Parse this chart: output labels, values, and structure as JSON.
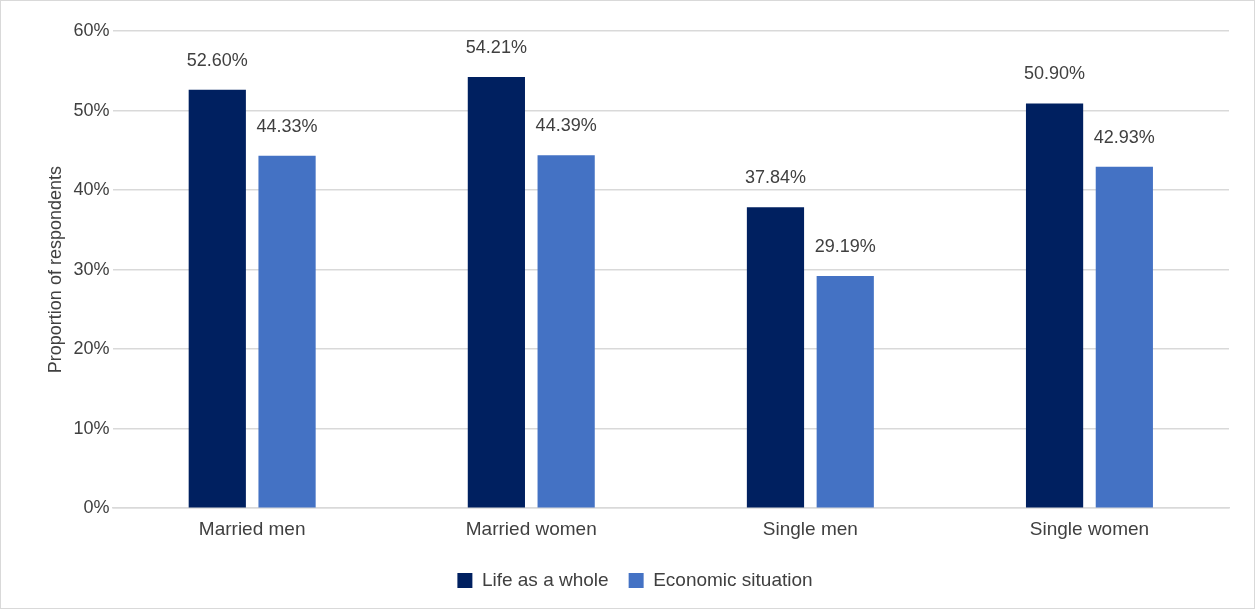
{
  "chart_data": {
    "type": "bar",
    "ylabel": "Proportion of respondents",
    "categories": [
      "Married men",
      "Married women",
      "Single men",
      "Single women"
    ],
    "series": [
      {
        "name": "Life as a whole",
        "color": "#002060",
        "values": [
          52.6,
          54.21,
          37.84,
          50.9
        ],
        "value_labels": [
          "52.60%",
          "54.21%",
          "37.84%",
          "50.90%"
        ]
      },
      {
        "name": "Economic situation",
        "color": "#4472c4",
        "values": [
          44.33,
          44.39,
          29.19,
          42.93
        ],
        "value_labels": [
          "44.33%",
          "44.39%",
          "29.19%",
          "42.93%"
        ]
      }
    ],
    "ylim": [
      0,
      60
    ],
    "yticks": [
      {
        "value": 0,
        "label": "0%"
      },
      {
        "value": 10,
        "label": "10%"
      },
      {
        "value": 20,
        "label": "20%"
      },
      {
        "value": 30,
        "label": "30%"
      },
      {
        "value": 40,
        "label": "40%"
      },
      {
        "value": 50,
        "label": "50%"
      },
      {
        "value": 60,
        "label": "60%"
      }
    ],
    "grid": "y",
    "legend": "bottom"
  }
}
